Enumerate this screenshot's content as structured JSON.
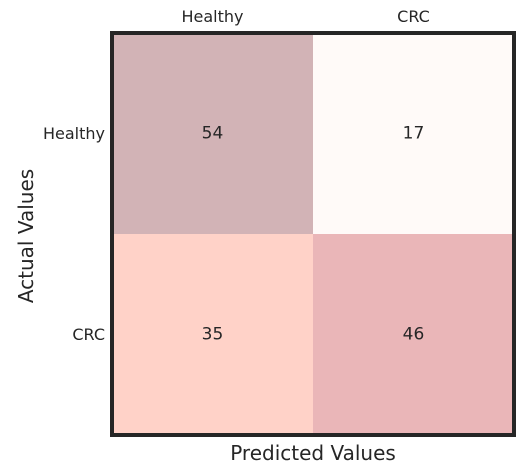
{
  "chart_data": {
    "type": "heatmap",
    "title": "",
    "xlabel": "Predicted Values",
    "ylabel": "Actual Values",
    "x_categories": [
      "Healthy",
      "CRC"
    ],
    "y_categories": [
      "Healthy",
      "CRC"
    ],
    "values": [
      [
        54,
        17
      ],
      [
        35,
        46
      ]
    ],
    "x_ticks_position": "top",
    "grid": false,
    "cell_colors": [
      [
        "#d2b3b6",
        "#fffaf8"
      ],
      [
        "#ffd2c8",
        "#eab6b8"
      ]
    ],
    "frame_color": "#262626"
  }
}
